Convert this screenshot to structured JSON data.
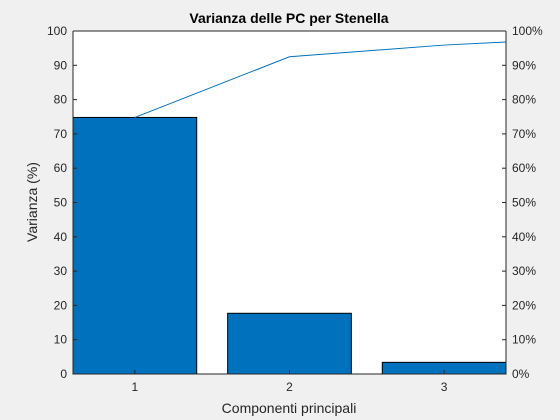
{
  "chart_data": {
    "type": "bar",
    "title": "Varianza delle PC per Stenella",
    "xlabel": "Componenti principali",
    "ylabel": "Varianza (%)",
    "categories": [
      "1",
      "2",
      "3"
    ],
    "values": [
      74.8,
      17.7,
      3.4
    ],
    "cumulative": {
      "type": "line",
      "values": [
        74.8,
        92.5,
        95.9,
        96.8
      ],
      "x": [
        1,
        2,
        3,
        3.45
      ]
    },
    "ylim": [
      0,
      100
    ],
    "yticks": [
      0,
      10,
      20,
      30,
      40,
      50,
      60,
      70,
      80,
      90,
      100
    ],
    "y2lim": [
      0,
      100
    ],
    "y2ticks": [
      "0%",
      "10%",
      "20%",
      "30%",
      "40%",
      "50%",
      "60%",
      "70%",
      "80%",
      "90%",
      "100%"
    ],
    "grid": false,
    "legend": "none",
    "colors": {
      "bar_fill": "#0072BD",
      "bar_edge": "#000000",
      "line": "#0072BD",
      "axes_bg": "#ffffff",
      "figure_bg": "#f0f0f0",
      "axis": "#262626"
    }
  }
}
